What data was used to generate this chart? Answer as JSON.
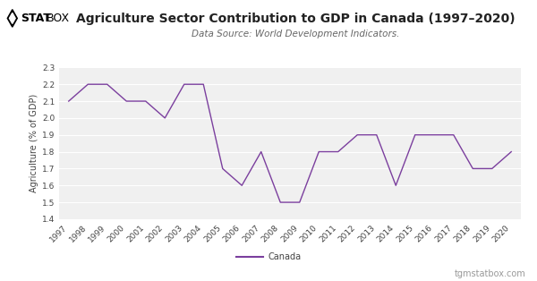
{
  "years": [
    1997,
    1998,
    1999,
    2000,
    2001,
    2002,
    2003,
    2004,
    2005,
    2006,
    2007,
    2008,
    2009,
    2010,
    2011,
    2012,
    2013,
    2014,
    2015,
    2016,
    2017,
    2018,
    2019,
    2020
  ],
  "values": [
    2.1,
    2.2,
    2.2,
    2.1,
    2.1,
    2.0,
    2.2,
    2.2,
    1.7,
    1.6,
    1.8,
    1.5,
    1.5,
    1.8,
    1.8,
    1.9,
    1.9,
    1.6,
    1.9,
    1.9,
    1.9,
    1.7,
    1.7,
    1.8
  ],
  "title": "Agriculture Sector Contribution to GDP in Canada (1997–2020)",
  "subtitle": "Data Source: World Development Indicators.",
  "ylabel": "Agriculture (% of GDP)",
  "line_color": "#7b3f9e",
  "ylim": [
    1.4,
    2.3
  ],
  "yticks": [
    1.4,
    1.5,
    1.6,
    1.7,
    1.8,
    1.9,
    2.0,
    2.1,
    2.2,
    2.3
  ],
  "legend_label": "Canada",
  "watermark": "tgmstatbox.com",
  "bg_color": "#ffffff",
  "plot_bg_color": "#f0f0f0",
  "logo_bold": "STAT",
  "logo_light": "BOX",
  "title_fontsize": 10,
  "subtitle_fontsize": 7.5,
  "ylabel_fontsize": 7,
  "tick_fontsize": 6.5,
  "watermark_fontsize": 7,
  "legend_fontsize": 7
}
